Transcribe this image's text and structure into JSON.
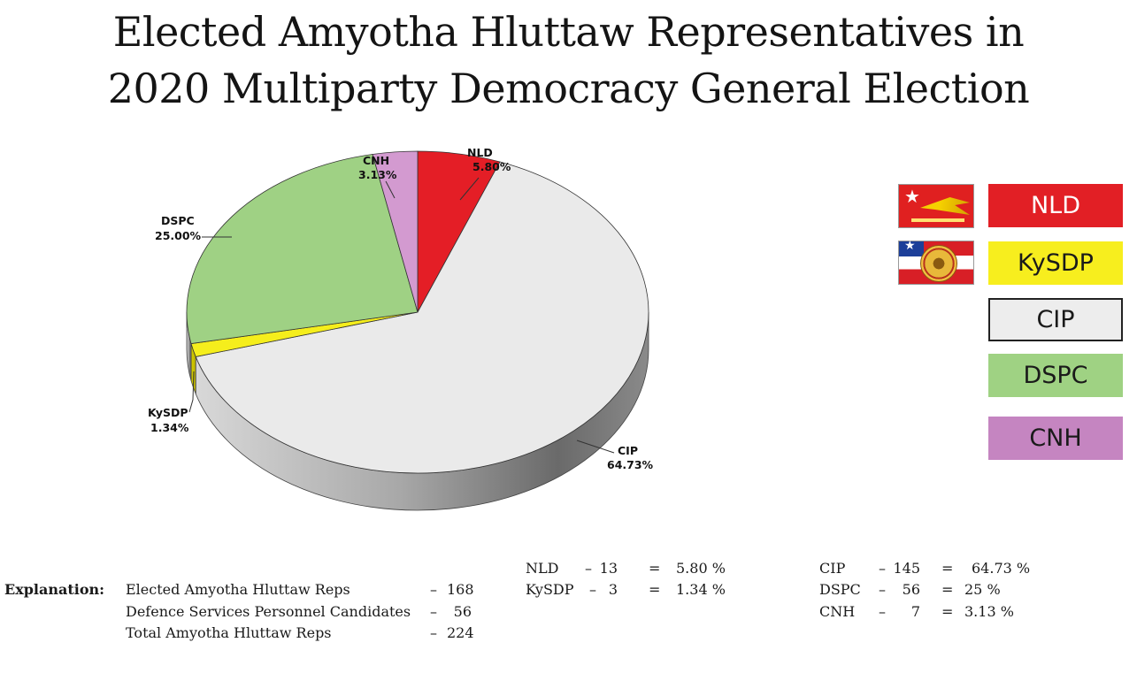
{
  "title": {
    "line1": "Elected Amyotha Hluttaw Representatives in",
    "line2": "2020 Multiparty Democracy General Election"
  },
  "colors": {
    "NLD": "#e41e26",
    "KySDP": "#f5ee1c",
    "CIP": "#eaeaea",
    "DSPC": "#9fd184",
    "CNH": "#d39ad0"
  },
  "chart_data": {
    "type": "pie",
    "title": "Elected Amyotha Hluttaw Representatives in 2020 Multiparty Democracy General Election",
    "slices": [
      {
        "label": "NLD",
        "value": 5.8,
        "display": "5.80%"
      },
      {
        "label": "CIP",
        "value": 64.73,
        "display": "64.73%"
      },
      {
        "label": "KySDP",
        "value": 1.34,
        "display": "1.34%"
      },
      {
        "label": "DSPC",
        "value": 25.0,
        "display": "25.00%"
      },
      {
        "label": "CNH",
        "value": 3.13,
        "display": "3.13%"
      }
    ],
    "legend": [
      "NLD",
      "KySDP",
      "CIP",
      "DSPC",
      "CNH"
    ],
    "legend_position": "right"
  },
  "legend": {
    "nld": "NLD",
    "kysdp": "KySDP",
    "cip": "CIP",
    "dspc": "DSPC",
    "cnh": "CNH"
  },
  "explanation": {
    "heading": "Explanation:",
    "rows": [
      {
        "label": "Elected Amyotha Hluttaw Reps",
        "dash": "–",
        "value": "168"
      },
      {
        "label": "Defence Services Personnel Candidates",
        "dash": "–",
        "value": "56"
      },
      {
        "label": "Total Amyotha Hluttaw Reps",
        "dash": "–",
        "value": "224"
      }
    ]
  },
  "seats": {
    "left": [
      {
        "party": "NLD",
        "dash": "–",
        "seats": "13",
        "eq": "=",
        "pct": "5.80 %"
      },
      {
        "party": "KySDP",
        "dash": "–",
        "seats": "3",
        "eq": "=",
        "pct": "1.34 %"
      }
    ],
    "right": [
      {
        "party": "CIP",
        "dash": "–",
        "seats": "145",
        "eq": "=",
        "pct": "64.73 %"
      },
      {
        "party": "DSPC",
        "dash": "–",
        "seats": "56",
        "eq": "=",
        "pct": "25 %"
      },
      {
        "party": "CNH",
        "dash": "–",
        "seats": "7",
        "eq": "=",
        "pct": "3.13 %"
      }
    ]
  }
}
